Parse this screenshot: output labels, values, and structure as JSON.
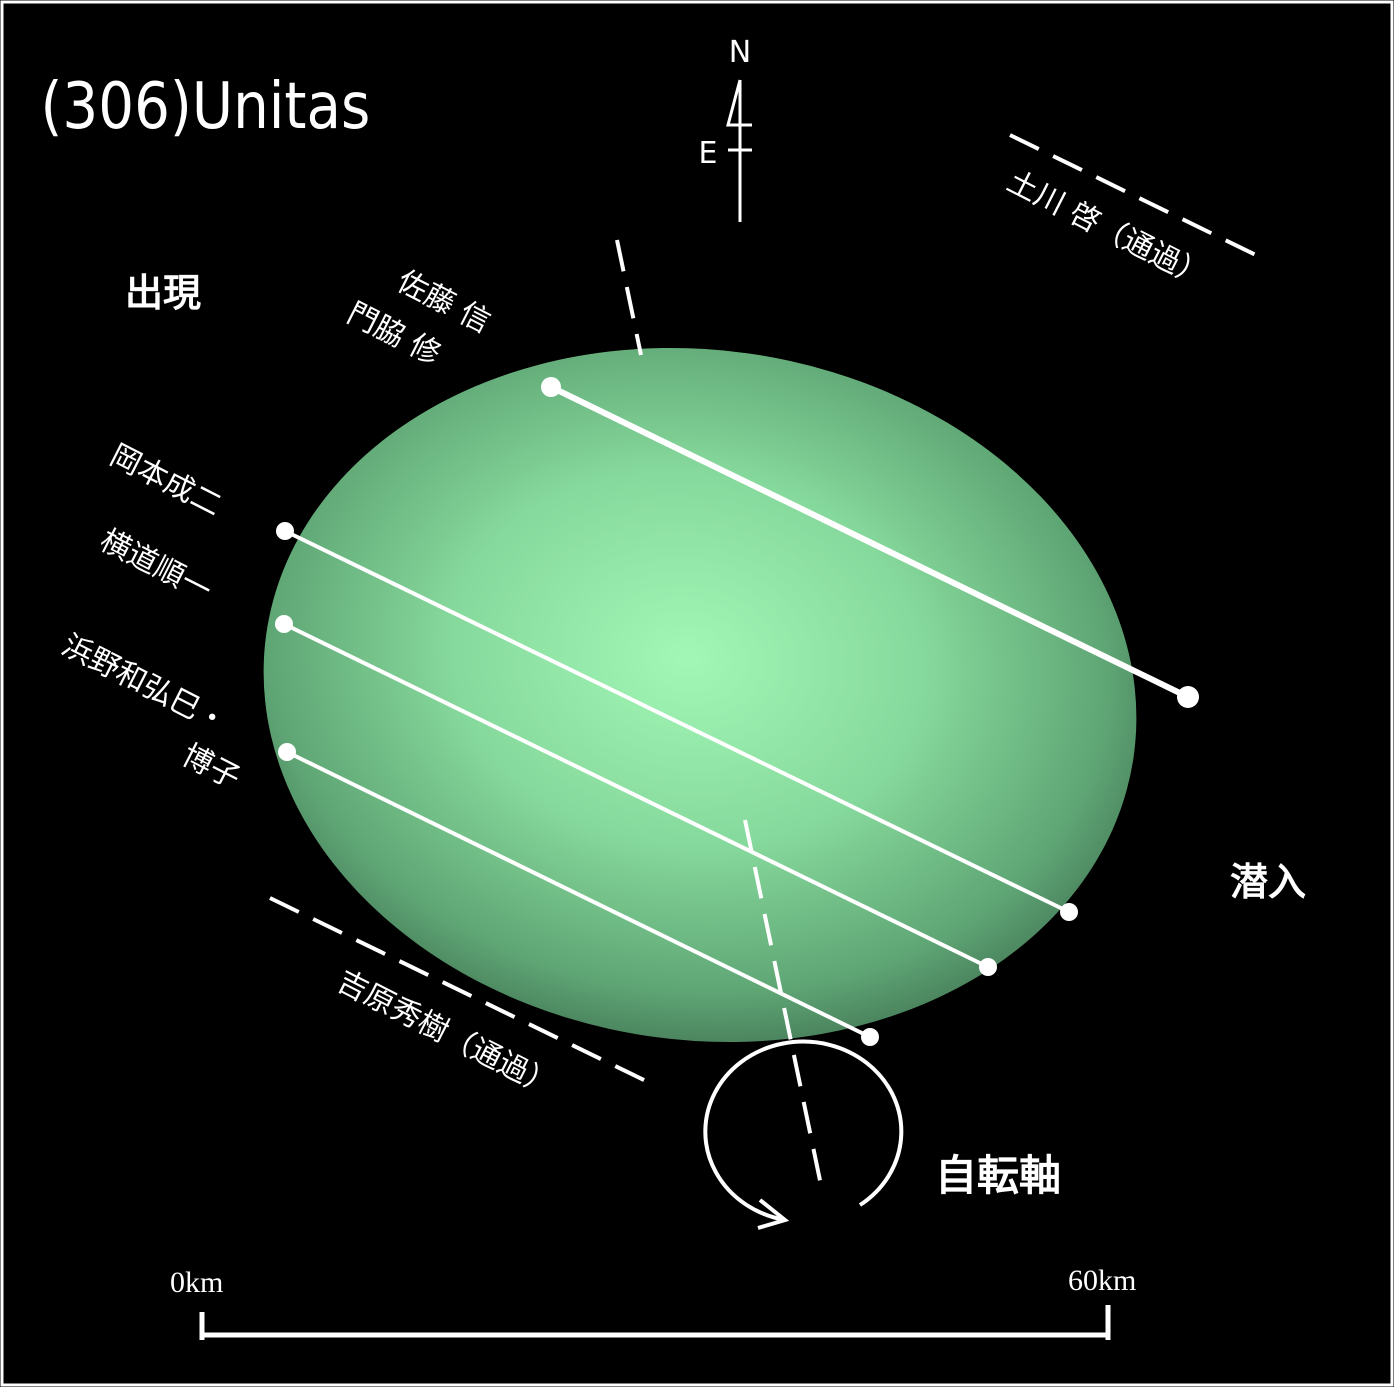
{
  "title": "(306)Unitas",
  "compass": {
    "north": "N",
    "east": "E"
  },
  "labels": {
    "appearance": "出現",
    "disappearance": "潜入",
    "rotation_axis": "自転軸"
  },
  "observers": [
    "佐藤 信",
    "門脇 修",
    "岡本成二",
    "横道順一",
    "浜野和弘巳・",
    "博子",
    "吉原秀樹（通過）",
    "土川 啓（通過）"
  ],
  "scale": {
    "start": "0km",
    "end": "60km"
  }
}
